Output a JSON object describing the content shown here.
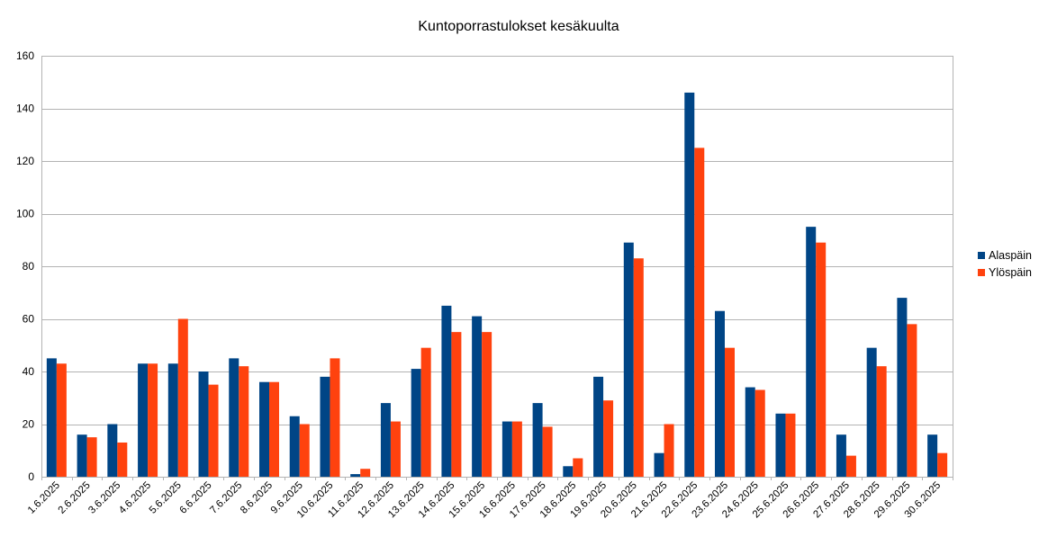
{
  "chart_data": {
    "type": "bar",
    "title": "Kuntoporrastulokset kesäkuulta",
    "xlabel": "",
    "ylabel": "",
    "ylim": [
      0,
      160
    ],
    "yticks": [
      0,
      20,
      40,
      60,
      80,
      100,
      120,
      140,
      160
    ],
    "grid": true,
    "legend_position": "right",
    "categories": [
      "1.6.2025",
      "2.6.2025",
      "3.6.2025",
      "4.6.2025",
      "5.6.2025",
      "6.6.2025",
      "7.6.2025",
      "8.6.2025",
      "9.6.2025",
      "10.6.2025",
      "11.6.2025",
      "12.6.2025",
      "13.6.2025",
      "14.6.2025",
      "15.6.2025",
      "16.6.2025",
      "17.6.2025",
      "18.6.2025",
      "19.6.2025",
      "20.6.2025",
      "21.6.2025",
      "22.6.2025",
      "23.6.2025",
      "24.6.2025",
      "25.6.2025",
      "26.6.2025",
      "27.6.2025",
      "28.6.2025",
      "29.6.2025",
      "30.6.2025"
    ],
    "series": [
      {
        "name": "Alaspäin",
        "color": "#004586",
        "values": [
          45,
          16,
          20,
          43,
          43,
          40,
          45,
          36,
          23,
          38,
          1,
          28,
          41,
          65,
          61,
          21,
          28,
          4,
          38,
          89,
          9,
          146,
          63,
          34,
          24,
          95,
          16,
          49,
          68,
          16
        ]
      },
      {
        "name": "Ylöspäin",
        "color": "#ff420e",
        "values": [
          43,
          15,
          13,
          43,
          60,
          35,
          42,
          36,
          20,
          45,
          3,
          21,
          49,
          55,
          55,
          21,
          19,
          7,
          29,
          83,
          20,
          125,
          49,
          33,
          24,
          89,
          8,
          42,
          58,
          9
        ]
      }
    ]
  }
}
